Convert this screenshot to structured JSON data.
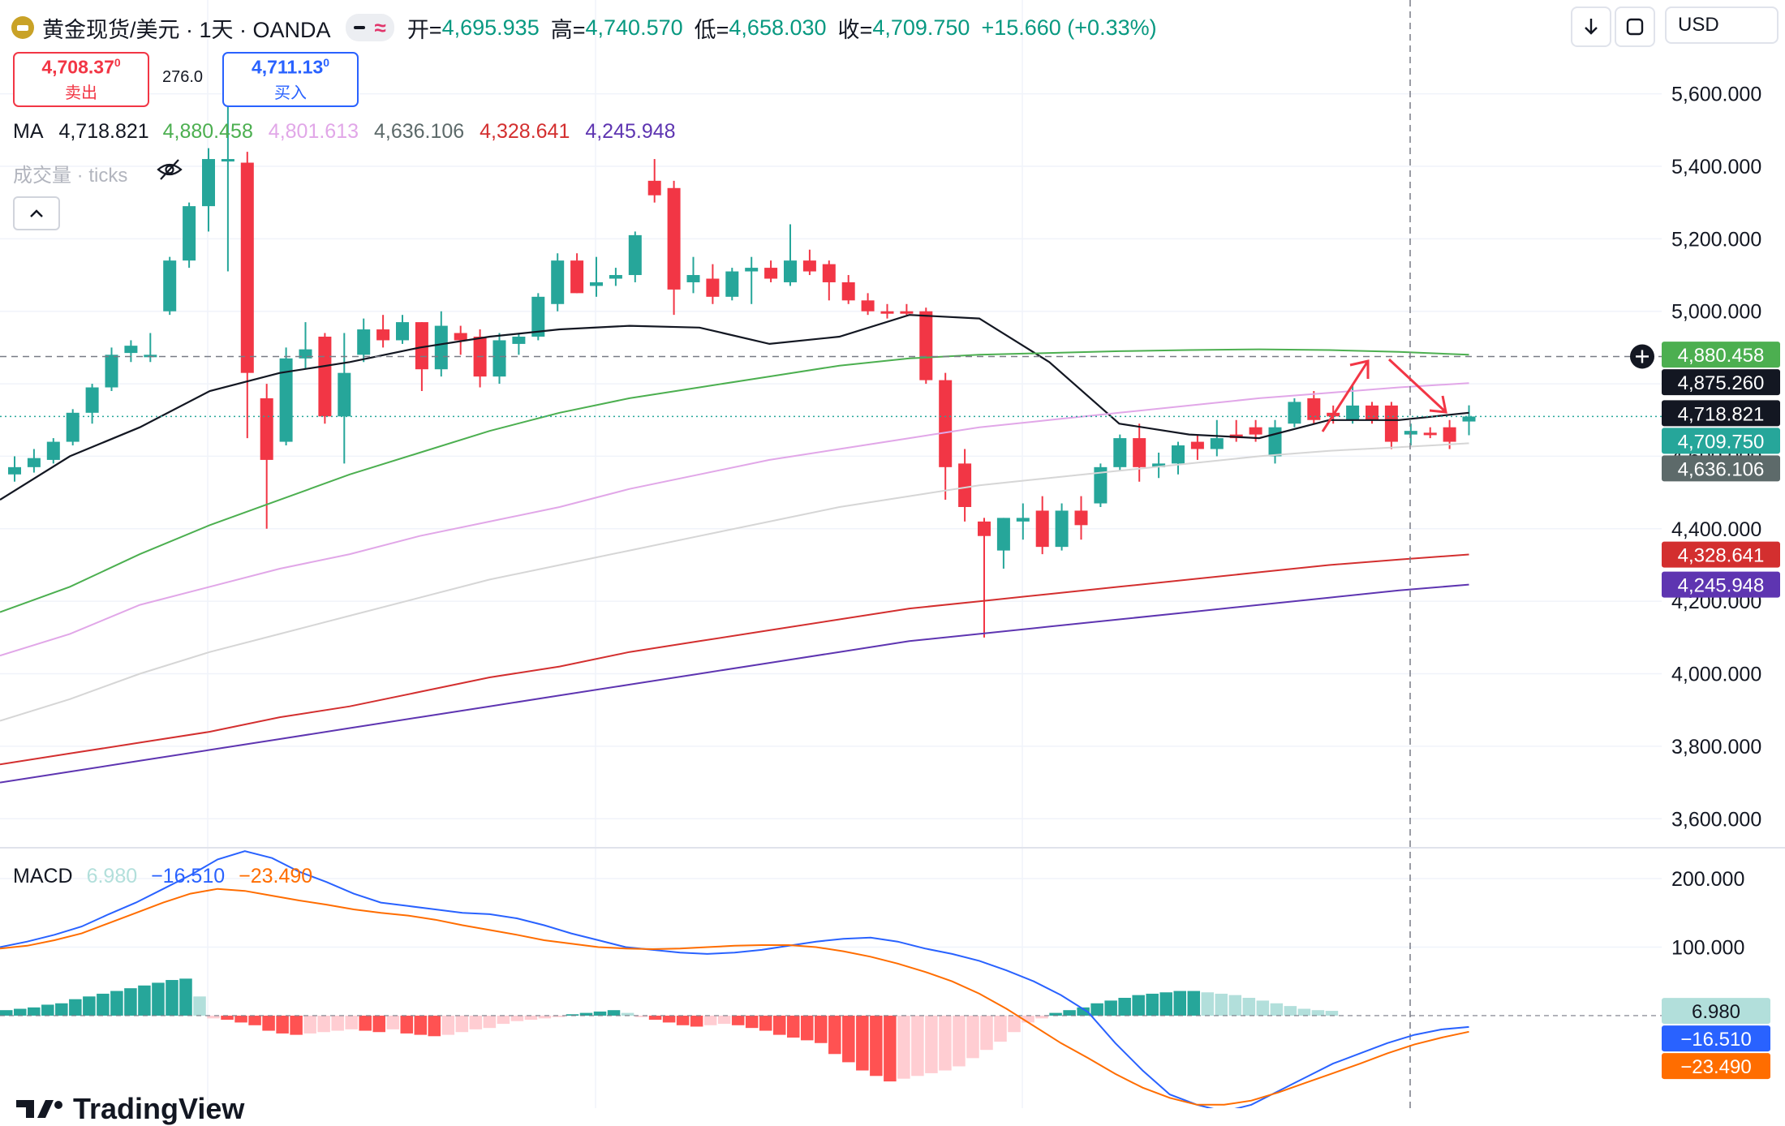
{
  "header": {
    "symbol": "黄金现货/美元 · 1天 · OANDA",
    "open_label": "开=",
    "open": "4,695.935",
    "high_label": "高=",
    "high": "4,740.570",
    "low_label": "低=",
    "low": "4,658.030",
    "close_label": "收=",
    "close": "4,709.750",
    "change": "+15.660 (+0.33%)"
  },
  "trade": {
    "sell_price": "4,708.37",
    "sell_sup": "0",
    "sell_label": "卖出",
    "buy_price": "4,711.13",
    "buy_sup": "0",
    "buy_label": "买入",
    "spread": "276.0"
  },
  "ma_legend": {
    "label": "MA",
    "values": [
      "4,718.821",
      "4,880.458",
      "4,801.613",
      "4,636.106",
      "4,328.641",
      "4,245.948"
    ]
  },
  "volume_legend": "成交量 · ticks",
  "macd_legend": {
    "label": "MACD",
    "hist": "6.980",
    "macd": "−16.510",
    "signal": "−23.490"
  },
  "toolbar": {
    "currency": "USD"
  },
  "watermark": "TradingView",
  "colors": {
    "up": "#26a69a",
    "down": "#f23645",
    "ma1": "#131722",
    "ma2": "#4caf50",
    "ma3": "#e1a7e8",
    "ma4": "#d6d6d6",
    "ma5": "#d32f2f",
    "ma6": "#5e35b1",
    "macd": "#2962ff",
    "signal": "#ff6d00"
  },
  "chart_data": [
    {
      "type": "candlestick",
      "title": "黄金现货/美元 · 1天 · OANDA",
      "ylim": [
        3520,
        5720
      ],
      "y_ticks": [
        "5,600.000",
        "5,400.000",
        "5,200.000",
        "5,000.000",
        "4,800.000",
        "4,600.000",
        "4,400.000",
        "4,200.000",
        "4,000.000",
        "3,800.000",
        "3,600.000"
      ],
      "y_tick_values": [
        5600,
        5400,
        5200,
        5000,
        4800,
        4600,
        4400,
        4200,
        4000,
        3800,
        3600
      ],
      "candles": [
        {
          "o": 4550,
          "h": 4600,
          "l": 4530,
          "c": 4570
        },
        {
          "o": 4570,
          "h": 4620,
          "l": 4555,
          "c": 4595
        },
        {
          "o": 4590,
          "h": 4650,
          "l": 4580,
          "c": 4640
        },
        {
          "o": 4640,
          "h": 4730,
          "l": 4630,
          "c": 4720
        },
        {
          "o": 4720,
          "h": 4800,
          "l": 4690,
          "c": 4790
        },
        {
          "o": 4790,
          "h": 4900,
          "l": 4780,
          "c": 4880
        },
        {
          "o": 4885,
          "h": 4920,
          "l": 4860,
          "c": 4905
        },
        {
          "o": 4880,
          "h": 4940,
          "l": 4860,
          "c": 4880
        },
        {
          "o": 5000,
          "h": 5150,
          "l": 4990,
          "c": 5140
        },
        {
          "o": 5140,
          "h": 5300,
          "l": 5120,
          "c": 5290
        },
        {
          "o": 5290,
          "h": 5450,
          "l": 5220,
          "c": 5420
        },
        {
          "o": 5420,
          "h": 5570,
          "l": 5110,
          "c": 5420
        },
        {
          "o": 5410,
          "h": 5440,
          "l": 4650,
          "c": 4830
        },
        {
          "o": 4760,
          "h": 4800,
          "l": 4400,
          "c": 4590
        },
        {
          "o": 4640,
          "h": 4900,
          "l": 4630,
          "c": 4870
        },
        {
          "o": 4870,
          "h": 4970,
          "l": 4840,
          "c": 4895
        },
        {
          "o": 4930,
          "h": 4940,
          "l": 4690,
          "c": 4710
        },
        {
          "o": 4710,
          "h": 4940,
          "l": 4580,
          "c": 4830
        },
        {
          "o": 4880,
          "h": 4980,
          "l": 4860,
          "c": 4950
        },
        {
          "o": 4950,
          "h": 4990,
          "l": 4900,
          "c": 4920
        },
        {
          "o": 4920,
          "h": 4990,
          "l": 4910,
          "c": 4970
        },
        {
          "o": 4970,
          "h": 4970,
          "l": 4780,
          "c": 4840
        },
        {
          "o": 4840,
          "h": 5000,
          "l": 4820,
          "c": 4960
        },
        {
          "o": 4940,
          "h": 4960,
          "l": 4880,
          "c": 4920
        },
        {
          "o": 4930,
          "h": 4950,
          "l": 4790,
          "c": 4820
        },
        {
          "o": 4820,
          "h": 4940,
          "l": 4800,
          "c": 4920
        },
        {
          "o": 4910,
          "h": 4940,
          "l": 4880,
          "c": 4930
        },
        {
          "o": 4930,
          "h": 5050,
          "l": 4920,
          "c": 5040
        },
        {
          "o": 5020,
          "h": 5160,
          "l": 5000,
          "c": 5140
        },
        {
          "o": 5140,
          "h": 5160,
          "l": 5050,
          "c": 5050
        },
        {
          "o": 5070,
          "h": 5150,
          "l": 5040,
          "c": 5080
        },
        {
          "o": 5090,
          "h": 5120,
          "l": 5070,
          "c": 5100
        },
        {
          "o": 5100,
          "h": 5220,
          "l": 5080,
          "c": 5210
        },
        {
          "o": 5360,
          "h": 5420,
          "l": 5300,
          "c": 5320
        },
        {
          "o": 5340,
          "h": 5360,
          "l": 4990,
          "c": 5060
        },
        {
          "o": 5080,
          "h": 5150,
          "l": 5050,
          "c": 5100
        },
        {
          "o": 5090,
          "h": 5130,
          "l": 5020,
          "c": 5040
        },
        {
          "o": 5040,
          "h": 5120,
          "l": 5030,
          "c": 5110
        },
        {
          "o": 5110,
          "h": 5150,
          "l": 5020,
          "c": 5120
        },
        {
          "o": 5120,
          "h": 5140,
          "l": 5080,
          "c": 5090
        },
        {
          "o": 5080,
          "h": 5240,
          "l": 5070,
          "c": 5140
        },
        {
          "o": 5140,
          "h": 5170,
          "l": 5100,
          "c": 5110
        },
        {
          "o": 5130,
          "h": 5140,
          "l": 5030,
          "c": 5080
        },
        {
          "o": 5080,
          "h": 5100,
          "l": 5020,
          "c": 5030
        },
        {
          "o": 5030,
          "h": 5050,
          "l": 4990,
          "c": 5000
        },
        {
          "o": 5000,
          "h": 5020,
          "l": 4980,
          "c": 4995
        },
        {
          "o": 5000,
          "h": 5020,
          "l": 4990,
          "c": 4995
        },
        {
          "o": 5000,
          "h": 5010,
          "l": 4800,
          "c": 4810
        },
        {
          "o": 4810,
          "h": 4830,
          "l": 4480,
          "c": 4570
        },
        {
          "o": 4580,
          "h": 4620,
          "l": 4420,
          "c": 4460
        },
        {
          "o": 4420,
          "h": 4430,
          "l": 4100,
          "c": 4380
        },
        {
          "o": 4340,
          "h": 4430,
          "l": 4290,
          "c": 4430
        },
        {
          "o": 4420,
          "h": 4470,
          "l": 4370,
          "c": 4430
        },
        {
          "o": 4450,
          "h": 4490,
          "l": 4330,
          "c": 4350
        },
        {
          "o": 4350,
          "h": 4470,
          "l": 4340,
          "c": 4450
        },
        {
          "o": 4450,
          "h": 4490,
          "l": 4370,
          "c": 4410
        },
        {
          "o": 4470,
          "h": 4580,
          "l": 4460,
          "c": 4570
        },
        {
          "o": 4570,
          "h": 4660,
          "l": 4560,
          "c": 4650
        },
        {
          "o": 4650,
          "h": 4690,
          "l": 4530,
          "c": 4570
        },
        {
          "o": 4570,
          "h": 4610,
          "l": 4540,
          "c": 4580
        },
        {
          "o": 4580,
          "h": 4640,
          "l": 4550,
          "c": 4630
        },
        {
          "o": 4640,
          "h": 4660,
          "l": 4590,
          "c": 4620
        },
        {
          "o": 4620,
          "h": 4700,
          "l": 4600,
          "c": 4650
        },
        {
          "o": 4660,
          "h": 4700,
          "l": 4640,
          "c": 4650
        },
        {
          "o": 4680,
          "h": 4700,
          "l": 4640,
          "c": 4660
        },
        {
          "o": 4600,
          "h": 4700,
          "l": 4580,
          "c": 4680
        },
        {
          "o": 4690,
          "h": 4760,
          "l": 4680,
          "c": 4750
        },
        {
          "o": 4760,
          "h": 4780,
          "l": 4690,
          "c": 4700
        },
        {
          "o": 4720,
          "h": 4740,
          "l": 4690,
          "c": 4710
        },
        {
          "o": 4700,
          "h": 4800,
          "l": 4690,
          "c": 4740
        },
        {
          "o": 4740,
          "h": 4750,
          "l": 4690,
          "c": 4700
        },
        {
          "o": 4740,
          "h": 4750,
          "l": 4620,
          "c": 4640
        },
        {
          "o": 4660,
          "h": 4690,
          "l": 4630,
          "c": 4670
        },
        {
          "o": 4665,
          "h": 4680,
          "l": 4650,
          "c": 4660
        },
        {
          "o": 4680,
          "h": 4700,
          "l": 4620,
          "c": 4640
        },
        {
          "o": 4695.935,
          "h": 4740.57,
          "l": 4658.03,
          "c": 4709.75
        }
      ],
      "moving_averages": [
        {
          "value": "4,718.821",
          "points": [
            4480,
            4600,
            4680,
            4780,
            4830,
            4860,
            4900,
            4930,
            4950,
            4960,
            4955,
            4910,
            4930,
            4990,
            4980,
            4860,
            4690,
            4660,
            4650,
            4700,
            4700,
            4720
          ]
        },
        {
          "value": "4,880.458",
          "points": [
            4170,
            4240,
            4330,
            4410,
            4480,
            4550,
            4610,
            4670,
            4720,
            4760,
            4790,
            4820,
            4850,
            4870,
            4880,
            4885,
            4890,
            4893,
            4895,
            4893,
            4888,
            4880
          ]
        },
        {
          "value": "4,801.613",
          "points": [
            4050,
            4110,
            4190,
            4240,
            4290,
            4330,
            4380,
            4420,
            4460,
            4510,
            4550,
            4590,
            4620,
            4650,
            4680,
            4700,
            4720,
            4740,
            4760,
            4775,
            4790,
            4802
          ]
        },
        {
          "value": "4,636.106",
          "points": [
            3870,
            3930,
            4000,
            4060,
            4110,
            4160,
            4210,
            4260,
            4300,
            4340,
            4380,
            4420,
            4460,
            4490,
            4520,
            4540,
            4560,
            4580,
            4600,
            4615,
            4625,
            4636
          ]
        },
        {
          "value": "4,328.641",
          "points": [
            3750,
            3780,
            3810,
            3840,
            3880,
            3910,
            3950,
            3990,
            4020,
            4060,
            4090,
            4120,
            4150,
            4180,
            4200,
            4220,
            4240,
            4260,
            4280,
            4300,
            4315,
            4329
          ]
        },
        {
          "value": "4,245.948",
          "points": [
            3700,
            3730,
            3760,
            3790,
            3820,
            3850,
            3880,
            3910,
            3940,
            3970,
            4000,
            4030,
            4060,
            4090,
            4110,
            4130,
            4150,
            4170,
            4190,
            4210,
            4230,
            4246
          ]
        }
      ],
      "price_labels": [
        {
          "text": "4,880.458",
          "value": 4880.458,
          "color": "#4caf50"
        },
        {
          "text": "4,875.260",
          "value": 4875.26,
          "color": "#131722"
        },
        {
          "text": "4,718.821",
          "value": 4718.821,
          "color": "#131722"
        },
        {
          "text": "4,709.750",
          "value": 4709.75,
          "color": "#26a69a"
        },
        {
          "text": "4,636.106",
          "value": 4636.106,
          "color": "#5d6a6a"
        },
        {
          "text": "4,328.641",
          "value": 4328.641,
          "color": "#d32f2f"
        },
        {
          "text": "4,245.948",
          "value": 4245.948,
          "color": "#5e35b1"
        }
      ],
      "crosshair_price": 4875.26
    },
    {
      "type": "macd",
      "title": "MACD",
      "ylim": [
        -135,
        245
      ],
      "y_ticks": [
        "200.000",
        "100.000"
      ],
      "y_tick_values": [
        200,
        100
      ],
      "histogram": [
        8,
        10,
        12,
        16,
        18,
        24,
        28,
        32,
        36,
        40,
        44,
        48,
        52,
        54,
        28,
        -4,
        -6,
        -10,
        -14,
        -22,
        -26,
        -28,
        -26,
        -24,
        -22,
        -20,
        -22,
        -24,
        -20,
        -26,
        -28,
        -30,
        -28,
        -24,
        -20,
        -18,
        -12,
        -8,
        -6,
        -4,
        -2,
        2,
        4,
        6,
        8,
        4,
        -2,
        -6,
        -10,
        -14,
        -16,
        -14,
        -12,
        -14,
        -18,
        -22,
        -28,
        -32,
        -36,
        -40,
        -56,
        -68,
        -80,
        -88,
        -96,
        -92,
        -88,
        -84,
        -80,
        -74,
        -62,
        -50,
        -38,
        -24,
        -10,
        -4,
        4,
        8,
        12,
        18,
        22,
        26,
        30,
        32,
        34,
        36,
        36,
        34,
        32,
        30,
        26,
        22,
        18,
        14,
        10,
        8,
        6.98
      ],
      "macd_line": [
        100,
        108,
        118,
        130,
        148,
        165,
        185,
        205,
        228,
        240,
        230,
        210,
        195,
        178,
        165,
        160,
        155,
        150,
        148,
        142,
        132,
        120,
        110,
        100,
        96,
        92,
        90,
        92,
        96,
        102,
        108,
        112,
        114,
        108,
        98,
        90,
        80,
        66,
        50,
        30,
        5,
        -40,
        -80,
        -115,
        -130,
        -140,
        -130,
        -110,
        -90,
        -70,
        -55,
        -40,
        -28,
        -20,
        -16.51
      ],
      "signal_line": [
        98,
        102,
        110,
        120,
        135,
        150,
        165,
        178,
        185,
        182,
        175,
        168,
        162,
        155,
        150,
        146,
        140,
        132,
        125,
        118,
        110,
        105,
        100,
        98,
        97,
        98,
        100,
        102,
        103,
        103,
        100,
        94,
        86,
        76,
        64,
        50,
        32,
        10,
        -15,
        -40,
        -62,
        -85,
        -105,
        -120,
        -130,
        -130,
        -124,
        -112,
        -98,
        -84,
        -70,
        -55,
        -42,
        -32,
        -23.49
      ],
      "value_labels": [
        {
          "text": "6.980",
          "value": 6.98,
          "color": "#b2dfdb",
          "fg": "#131722"
        },
        {
          "text": "−16.510",
          "value": -16.51,
          "color": "#2962ff",
          "fg": "#ffffff"
        },
        {
          "text": "−23.490",
          "value": -23.49,
          "color": "#ff6d00",
          "fg": "#ffffff"
        }
      ]
    }
  ]
}
